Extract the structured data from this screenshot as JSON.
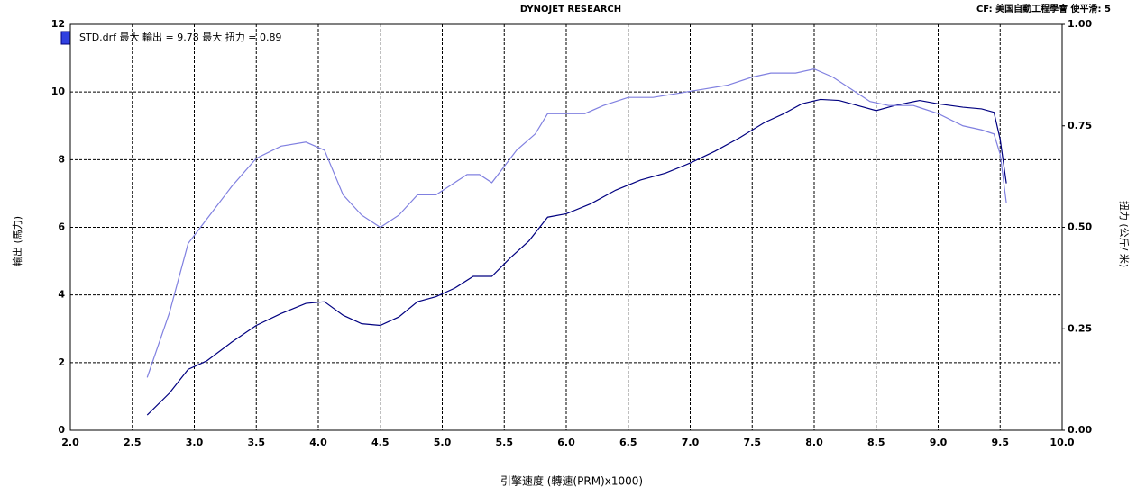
{
  "chart_data": {
    "type": "line",
    "title": "DYNOJET RESEARCH",
    "subtitle": "CF: 美国自動工程學會  使平滑: 5",
    "annotation": "STD.drf 最大 輸出 = 9.78     最大 扭力 = 0.89",
    "xlabel": "引擎速度 (轉速(PRM)x1000)",
    "ylabel": "輸出 (馬力)",
    "y2label": "扭力 (公斤/ 米)",
    "xlim": [
      2,
      10
    ],
    "xticks": [
      {
        "value": 2,
        "label": "2.0"
      },
      2.5,
      {
        "value": 3,
        "label": "3.0"
      },
      3.5,
      {
        "value": 4,
        "label": "4.0"
      },
      4.5,
      {
        "value": 5,
        "label": "5.0"
      },
      5.5,
      {
        "value": 6,
        "label": "6.0"
      },
      6.5,
      {
        "value": 7,
        "label": "7.0"
      },
      7.5,
      {
        "value": 8,
        "label": "8.0"
      },
      8.5,
      {
        "value": 9,
        "label": "9.0"
      },
      9.5,
      {
        "value": 10,
        "label": "10.0"
      }
    ],
    "ylim": [
      0,
      12
    ],
    "yticks": [
      0,
      2,
      4,
      6,
      8,
      10,
      12
    ],
    "y2lim": [
      0,
      1
    ],
    "y2ticks": [
      {
        "value": 0,
        "label": "0.00"
      },
      0.25,
      {
        "value": 0.5,
        "label": "0.50"
      },
      0.75,
      {
        "value": 1,
        "label": "1.00"
      }
    ],
    "grid": true,
    "series": [
      {
        "color": "#000080",
        "axis": "y",
        "x": [
          2.62,
          2.8,
          2.95,
          3.1,
          3.3,
          3.5,
          3.7,
          3.9,
          4.05,
          4.2,
          4.35,
          4.5,
          4.65,
          4.8,
          4.95,
          5.1,
          5.25,
          5.4,
          5.55,
          5.7,
          5.85,
          6.0,
          6.2,
          6.4,
          6.6,
          6.8,
          7.0,
          7.2,
          7.4,
          7.6,
          7.75,
          7.9,
          8.05,
          8.2,
          8.35,
          8.5,
          8.65,
          8.85,
          9.0,
          9.2,
          9.35,
          9.45,
          9.5,
          9.55
        ],
        "values": [
          0.45,
          1.1,
          1.8,
          2.05,
          2.6,
          3.1,
          3.45,
          3.75,
          3.8,
          3.4,
          3.15,
          3.1,
          3.35,
          3.8,
          3.95,
          4.2,
          4.55,
          4.55,
          5.1,
          5.6,
          6.3,
          6.4,
          6.7,
          7.1,
          7.4,
          7.6,
          7.9,
          8.25,
          8.65,
          9.1,
          9.35,
          9.65,
          9.78,
          9.75,
          9.6,
          9.45,
          9.6,
          9.75,
          9.65,
          9.55,
          9.5,
          9.4,
          8.6,
          7.3
        ]
      },
      {
        "color": "#8080e0",
        "axis": "y2",
        "x": [
          2.62,
          2.8,
          2.95,
          3.1,
          3.3,
          3.5,
          3.7,
          3.9,
          4.05,
          4.2,
          4.35,
          4.5,
          4.65,
          4.8,
          4.95,
          5.1,
          5.2,
          5.3,
          5.4,
          5.5,
          5.6,
          5.75,
          5.85,
          6.0,
          6.15,
          6.3,
          6.5,
          6.7,
          6.9,
          7.1,
          7.3,
          7.5,
          7.65,
          7.85,
          8.0,
          8.15,
          8.3,
          8.45,
          8.6,
          8.8,
          9.0,
          9.2,
          9.35,
          9.45,
          9.5,
          9.55
        ],
        "values": [
          0.13,
          0.29,
          0.46,
          0.52,
          0.6,
          0.67,
          0.7,
          0.71,
          0.69,
          0.58,
          0.53,
          0.5,
          0.53,
          0.58,
          0.58,
          0.61,
          0.63,
          0.63,
          0.61,
          0.65,
          0.69,
          0.73,
          0.78,
          0.78,
          0.78,
          0.8,
          0.82,
          0.82,
          0.83,
          0.84,
          0.85,
          0.87,
          0.88,
          0.88,
          0.89,
          0.87,
          0.84,
          0.81,
          0.8,
          0.8,
          0.78,
          0.75,
          0.74,
          0.73,
          0.68,
          0.56
        ]
      }
    ]
  }
}
